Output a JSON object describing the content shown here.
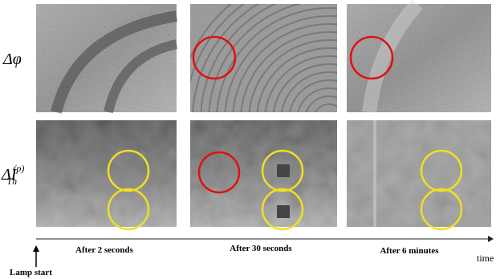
{
  "row_labels": [
    {
      "text": "Δφ"
    },
    {
      "base": "ΔI",
      "subscript": "Th",
      "superscript": "(p)"
    }
  ],
  "time_axis": {
    "labels": [
      "After 2 seconds",
      "After 30 seconds",
      "After 6 minutes"
    ],
    "axis_label": "time",
    "start_label": "Lamp start"
  }
}
